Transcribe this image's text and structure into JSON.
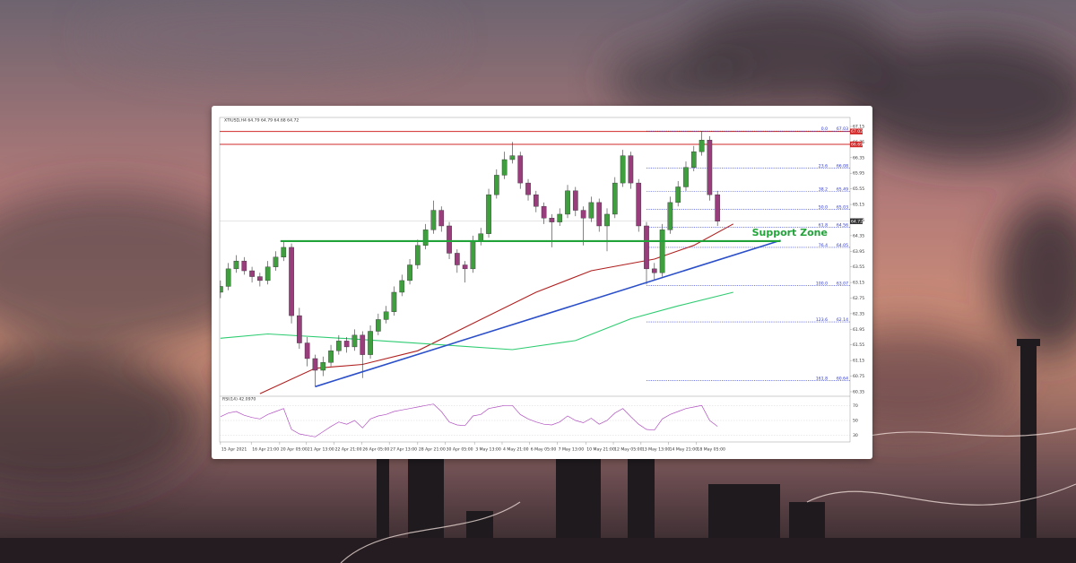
{
  "chart_data": {
    "type": "candlestick",
    "title": "XTIUSD,H4 64.79 64.79 64.68 64.72",
    "xlim": [
      -0.1,
      79.8
    ],
    "ylim": [
      60.28,
      67.38
    ],
    "yticks": [
      67.15,
      66.75,
      66.35,
      65.95,
      65.55,
      65.15,
      64.75,
      64.35,
      63.95,
      63.55,
      63.15,
      62.75,
      62.35,
      61.95,
      61.55,
      61.15,
      60.75,
      60.35
    ],
    "xticks": [
      {
        "value": 0,
        "label": "15 Apr 2021"
      },
      {
        "value": 3.9,
        "label": "16 Apr 21:00"
      },
      {
        "value": 7.5,
        "label": "20 Apr 05:00"
      },
      {
        "value": 10.9,
        "label": "21 Apr 13:00"
      },
      {
        "value": 14.4,
        "label": "22 Apr 21:00"
      },
      {
        "value": 17.9,
        "label": "26 Apr 05:00"
      },
      {
        "value": 21.4,
        "label": "27 Apr 13:00"
      },
      {
        "value": 25,
        "label": "28 Apr 21:00"
      },
      {
        "value": 28.5,
        "label": "30 Apr 05:00"
      },
      {
        "value": 32.2,
        "label": "3 May 13:00"
      },
      {
        "value": 35.7,
        "label": "4 May 21:00"
      },
      {
        "value": 39.2,
        "label": "6 May 05:00"
      },
      {
        "value": 42.7,
        "label": "7 May 13:00"
      },
      {
        "value": 46.3,
        "label": "10 May 21:00"
      },
      {
        "value": 49.8,
        "label": "12 May 05:00"
      },
      {
        "value": 53.3,
        "label": "13 May 13:00"
      },
      {
        "value": 56.8,
        "label": "14 May 21:00"
      },
      {
        "value": 60.3,
        "label": "18 May 05:00"
      }
    ],
    "up_color": "#3f9f3f",
    "down_color": "#993d7d",
    "ohlc": [
      [
        62.9,
        63.2,
        62.75,
        63.05
      ],
      [
        63.05,
        63.65,
        62.95,
        63.5
      ],
      [
        63.5,
        63.85,
        63.4,
        63.7
      ],
      [
        63.7,
        63.8,
        63.35,
        63.45
      ],
      [
        63.45,
        63.55,
        63.15,
        63.3
      ],
      [
        63.3,
        63.4,
        63.05,
        63.2
      ],
      [
        63.2,
        63.7,
        63.1,
        63.55
      ],
      [
        63.55,
        63.95,
        63.45,
        63.8
      ],
      [
        63.8,
        64.2,
        63.7,
        64.05
      ],
      [
        64.05,
        64.15,
        62.1,
        62.3
      ],
      [
        62.3,
        62.5,
        61.45,
        61.6
      ],
      [
        61.6,
        61.75,
        61.0,
        61.2
      ],
      [
        61.2,
        61.3,
        60.48,
        60.9
      ],
      [
        60.9,
        61.25,
        60.75,
        61.1
      ],
      [
        61.1,
        61.55,
        61.0,
        61.4
      ],
      [
        61.4,
        61.8,
        61.3,
        61.65
      ],
      [
        61.65,
        61.75,
        61.35,
        61.5
      ],
      [
        61.5,
        61.95,
        61.4,
        61.8
      ],
      [
        61.8,
        61.9,
        60.7,
        61.3
      ],
      [
        61.3,
        62.05,
        61.2,
        61.9
      ],
      [
        61.9,
        62.35,
        61.8,
        62.2
      ],
      [
        62.2,
        62.55,
        62.1,
        62.4
      ],
      [
        62.4,
        63.05,
        62.3,
        62.9
      ],
      [
        62.9,
        63.35,
        62.8,
        63.2
      ],
      [
        63.2,
        63.75,
        63.1,
        63.6
      ],
      [
        63.6,
        64.25,
        63.5,
        64.1
      ],
      [
        64.1,
        64.65,
        64.0,
        64.5
      ],
      [
        64.5,
        65.25,
        64.4,
        65.0
      ],
      [
        65.0,
        65.1,
        64.45,
        64.6
      ],
      [
        64.6,
        64.7,
        63.75,
        63.9
      ],
      [
        63.9,
        64.0,
        63.4,
        63.6
      ],
      [
        63.6,
        63.7,
        63.15,
        63.5
      ],
      [
        63.5,
        64.35,
        63.4,
        64.2
      ],
      [
        64.2,
        64.55,
        64.1,
        64.4
      ],
      [
        64.4,
        65.55,
        64.3,
        65.4
      ],
      [
        65.4,
        66.05,
        65.3,
        65.9
      ],
      [
        65.9,
        66.5,
        65.8,
        66.3
      ],
      [
        66.3,
        66.75,
        66.2,
        66.4
      ],
      [
        66.4,
        66.5,
        65.55,
        65.7
      ],
      [
        65.7,
        65.8,
        65.25,
        65.4
      ],
      [
        65.4,
        65.5,
        64.95,
        65.1
      ],
      [
        65.1,
        65.2,
        64.65,
        64.8
      ],
      [
        64.8,
        64.9,
        64.05,
        64.7
      ],
      [
        64.7,
        65.05,
        64.6,
        64.9
      ],
      [
        64.9,
        65.65,
        64.8,
        65.5
      ],
      [
        65.5,
        65.6,
        64.85,
        65.0
      ],
      [
        65.0,
        65.1,
        64.1,
        64.8
      ],
      [
        64.8,
        65.35,
        64.7,
        65.2
      ],
      [
        65.2,
        65.3,
        64.45,
        64.6
      ],
      [
        64.6,
        65.05,
        63.95,
        64.9
      ],
      [
        64.9,
        65.85,
        64.8,
        65.7
      ],
      [
        65.7,
        66.55,
        65.6,
        66.4
      ],
      [
        66.4,
        66.5,
        65.55,
        65.7
      ],
      [
        65.7,
        65.8,
        64.45,
        64.6
      ],
      [
        64.6,
        64.7,
        63.1,
        63.5
      ],
      [
        63.5,
        63.65,
        63.2,
        63.4
      ],
      [
        63.4,
        64.65,
        63.3,
        64.5
      ],
      [
        64.5,
        65.35,
        64.4,
        65.2
      ],
      [
        65.2,
        65.75,
        65.1,
        65.6
      ],
      [
        65.6,
        66.25,
        65.5,
        66.1
      ],
      [
        66.1,
        66.65,
        66.0,
        66.5
      ],
      [
        66.5,
        67.03,
        66.4,
        66.8
      ],
      [
        66.8,
        66.9,
        65.25,
        65.4
      ],
      [
        65.4,
        65.5,
        64.6,
        64.72
      ]
    ],
    "lines": [
      {
        "color": "#b02020",
        "x": [
          5,
          12,
          18,
          25,
          31,
          40,
          47,
          55,
          60,
          65
        ],
        "values": [
          60.3,
          60.95,
          61.05,
          61.4,
          62.0,
          62.9,
          63.45,
          63.75,
          64.1,
          64.65
        ]
      },
      {
        "color": "#2ecc71",
        "x": [
          0,
          6,
          17,
          29,
          37,
          45,
          52,
          58,
          65
        ],
        "values": [
          61.72,
          61.83,
          61.7,
          61.54,
          61.43,
          61.66,
          62.22,
          62.55,
          62.9
        ]
      }
    ],
    "trendline": {
      "color": "#2b4fc9",
      "x": [
        12,
        71
      ],
      "values": [
        60.48,
        64.23
      ]
    },
    "support_zone": {
      "label": "Support Zone",
      "color": "#22a33a",
      "x": [
        7.6,
        71
      ],
      "value": 64.21
    },
    "resistance": {
      "color": "#d02828",
      "values": [
        67.02,
        66.69
      ]
    },
    "last_price": 64.72,
    "fibonacci": {
      "color": "#2a35d0",
      "x_start": 54,
      "levels": [
        {
          "ratio": "0.0",
          "value": 67.03
        },
        {
          "ratio": "23.6",
          "value": 66.08
        },
        {
          "ratio": "38.2",
          "value": 65.49
        },
        {
          "ratio": "50.0",
          "value": 65.03
        },
        {
          "ratio": "61.8",
          "value": 64.56
        },
        {
          "ratio": "76.4",
          "value": 64.05
        },
        {
          "ratio": "100.0",
          "value": 63.07
        },
        {
          "ratio": "123.6",
          "value": 62.14
        },
        {
          "ratio": "161.8",
          "value": 60.64
        }
      ]
    },
    "rsi": {
      "label": "RSI(14) 42.0970",
      "color": "#b050c0",
      "ylim": [
        20,
        80
      ],
      "yticks": [
        70,
        50,
        30
      ],
      "values": [
        55,
        60,
        62,
        57,
        54,
        52,
        58,
        62,
        66,
        38,
        32,
        30,
        28,
        35,
        42,
        48,
        45,
        50,
        40,
        52,
        56,
        58,
        62,
        64,
        66,
        68,
        70,
        72,
        62,
        48,
        44,
        43,
        56,
        58,
        66,
        68,
        70,
        70,
        58,
        52,
        48,
        45,
        44,
        48,
        56,
        50,
        47,
        53,
        45,
        50,
        60,
        66,
        55,
        45,
        38,
        37,
        52,
        58,
        62,
        66,
        68,
        70,
        50,
        42.097
      ]
    }
  }
}
